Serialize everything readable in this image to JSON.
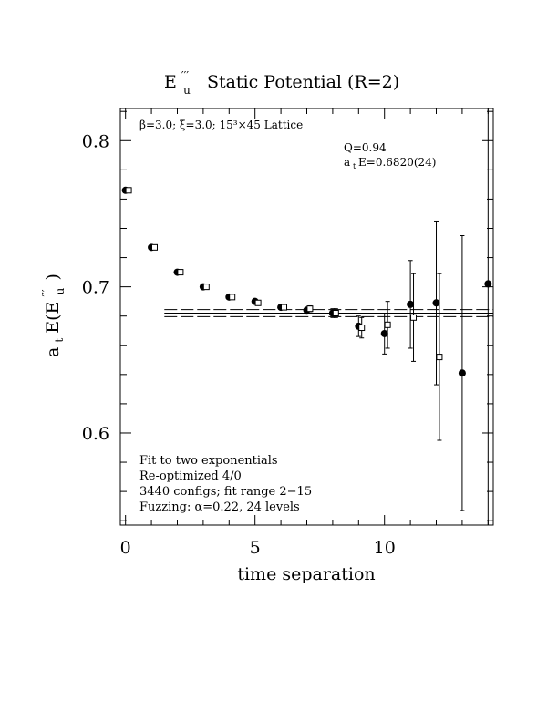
{
  "chart_data": {
    "type": "scatter",
    "title_symbol": "E",
    "title_super": "′′′",
    "title_sub": "u",
    "title_rest": "Static Potential (R=2)",
    "xlabel": "time separation",
    "ylabel_prefix": "a",
    "ylabel_prefix_sub": "t",
    "ylabel_mid": "E(E",
    "ylabel_super": "′′′",
    "ylabel_sub": "u",
    "ylabel_close": " )",
    "xlim": [
      -0.2,
      14.2
    ],
    "ylim": [
      0.537,
      0.822
    ],
    "x_ticks": [
      0,
      5,
      10
    ],
    "x_tick_labels": [
      "0",
      "5",
      "10"
    ],
    "y_ticks": [
      0.6,
      0.7,
      0.8
    ],
    "y_tick_labels": [
      "0.6",
      "0.7",
      "0.8"
    ],
    "annotations": {
      "lattice": "β=3.0; ξ=3.0; 15³×45 Lattice",
      "q_value": "Q=0.94",
      "ate_prefix": "a",
      "ate_sub": "t",
      "ate_rest": "E=0.6820(24)",
      "fit_lines": [
        "Fit to two exponentials",
        "Re-optimized 4/0",
        "3440 configs; fit range 2−15",
        "Fuzzing: α=0.22, 24 levels"
      ]
    },
    "fit": {
      "center": 0.682,
      "error": 0.0024,
      "x_start": 1.5,
      "x_end": 14.2
    },
    "series": [
      {
        "marker": "filled-circle",
        "points": [
          {
            "x": 0,
            "y": 0.766,
            "err": 0.001
          },
          {
            "x": 1,
            "y": 0.727,
            "err": 0.001
          },
          {
            "x": 2,
            "y": 0.71,
            "err": 0.001
          },
          {
            "x": 3,
            "y": 0.7,
            "err": 0.001
          },
          {
            "x": 4,
            "y": 0.693,
            "err": 0.001
          },
          {
            "x": 5,
            "y": 0.69,
            "err": 0.001
          },
          {
            "x": 6,
            "y": 0.686,
            "err": 0.0015
          },
          {
            "x": 7,
            "y": 0.684,
            "err": 0.002
          },
          {
            "x": 8,
            "y": 0.682,
            "err": 0.003
          },
          {
            "x": 9,
            "y": 0.673,
            "err": 0.007
          },
          {
            "x": 10,
            "y": 0.668,
            "err": 0.014
          },
          {
            "x": 11,
            "y": 0.688,
            "err": 0.03
          },
          {
            "x": 12,
            "y": 0.689,
            "err": 0.056
          },
          {
            "x": 13,
            "y": 0.641,
            "err": 0.094
          },
          {
            "x": 14,
            "y": 0.702,
            "err": 0.22
          }
        ]
      },
      {
        "marker": "open-square",
        "points": [
          {
            "x": 0.12,
            "y": 0.766,
            "err": 0.001
          },
          {
            "x": 1.12,
            "y": 0.727,
            "err": 0.001
          },
          {
            "x": 2.12,
            "y": 0.71,
            "err": 0.001
          },
          {
            "x": 3.12,
            "y": 0.7,
            "err": 0.001
          },
          {
            "x": 4.12,
            "y": 0.693,
            "err": 0.001
          },
          {
            "x": 5.12,
            "y": 0.689,
            "err": 0.001
          },
          {
            "x": 6.12,
            "y": 0.686,
            "err": 0.0015
          },
          {
            "x": 7.12,
            "y": 0.685,
            "err": 0.002
          },
          {
            "x": 8.12,
            "y": 0.682,
            "err": 0.003
          },
          {
            "x": 9.12,
            "y": 0.672,
            "err": 0.007
          },
          {
            "x": 10.12,
            "y": 0.674,
            "err": 0.016
          },
          {
            "x": 11.12,
            "y": 0.679,
            "err": 0.03
          },
          {
            "x": 12.12,
            "y": 0.652,
            "err": 0.057
          }
        ]
      }
    ]
  }
}
